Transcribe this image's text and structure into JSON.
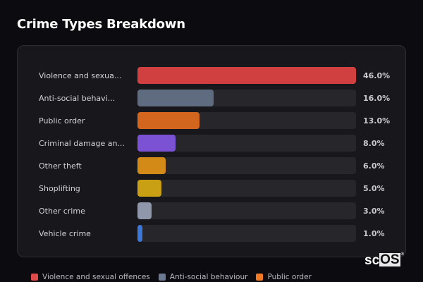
{
  "page": {
    "title": "Crime Types Breakdown"
  },
  "chart_data": {
    "type": "bar",
    "orientation": "horizontal",
    "title": "Crime Types Breakdown",
    "categories": [
      "Violence and sexual offences",
      "Anti-social behaviour",
      "Public order",
      "Criminal damage and arson",
      "Other theft",
      "Shoplifting",
      "Other crime",
      "Vehicle crime"
    ],
    "display_labels": [
      "Violence and sexua...",
      "Anti-social behavi...",
      "Public order",
      "Criminal damage an...",
      "Other theft",
      "Shoplifting",
      "Other crime",
      "Vehicle crime"
    ],
    "values": [
      46.0,
      16.0,
      13.0,
      8.0,
      6.0,
      5.0,
      3.0,
      1.0
    ],
    "value_labels": [
      "46.0%",
      "16.0%",
      "13.0%",
      "8.0%",
      "6.0%",
      "5.0%",
      "3.0%",
      "1.0%"
    ],
    "colors": [
      "#d04040",
      "#5f6b7e",
      "#d2661e",
      "#7c52d4",
      "#d48a16",
      "#c9a013",
      "#8e98aa",
      "#3c78d8"
    ],
    "unit": "%",
    "xlim": [
      0,
      46
    ],
    "legend_position": "bottom",
    "grid": false
  },
  "legend": {
    "items": [
      {
        "label": "Violence and sexual offences",
        "color": "#e04a4a"
      },
      {
        "label": "Anti-social behaviour",
        "color": "#6b7890"
      },
      {
        "label": "Public order",
        "color": "#f07a24"
      }
    ]
  },
  "branding": {
    "logo_sc": "sc",
    "logo_os": "OS",
    "logo_reg": "®"
  }
}
